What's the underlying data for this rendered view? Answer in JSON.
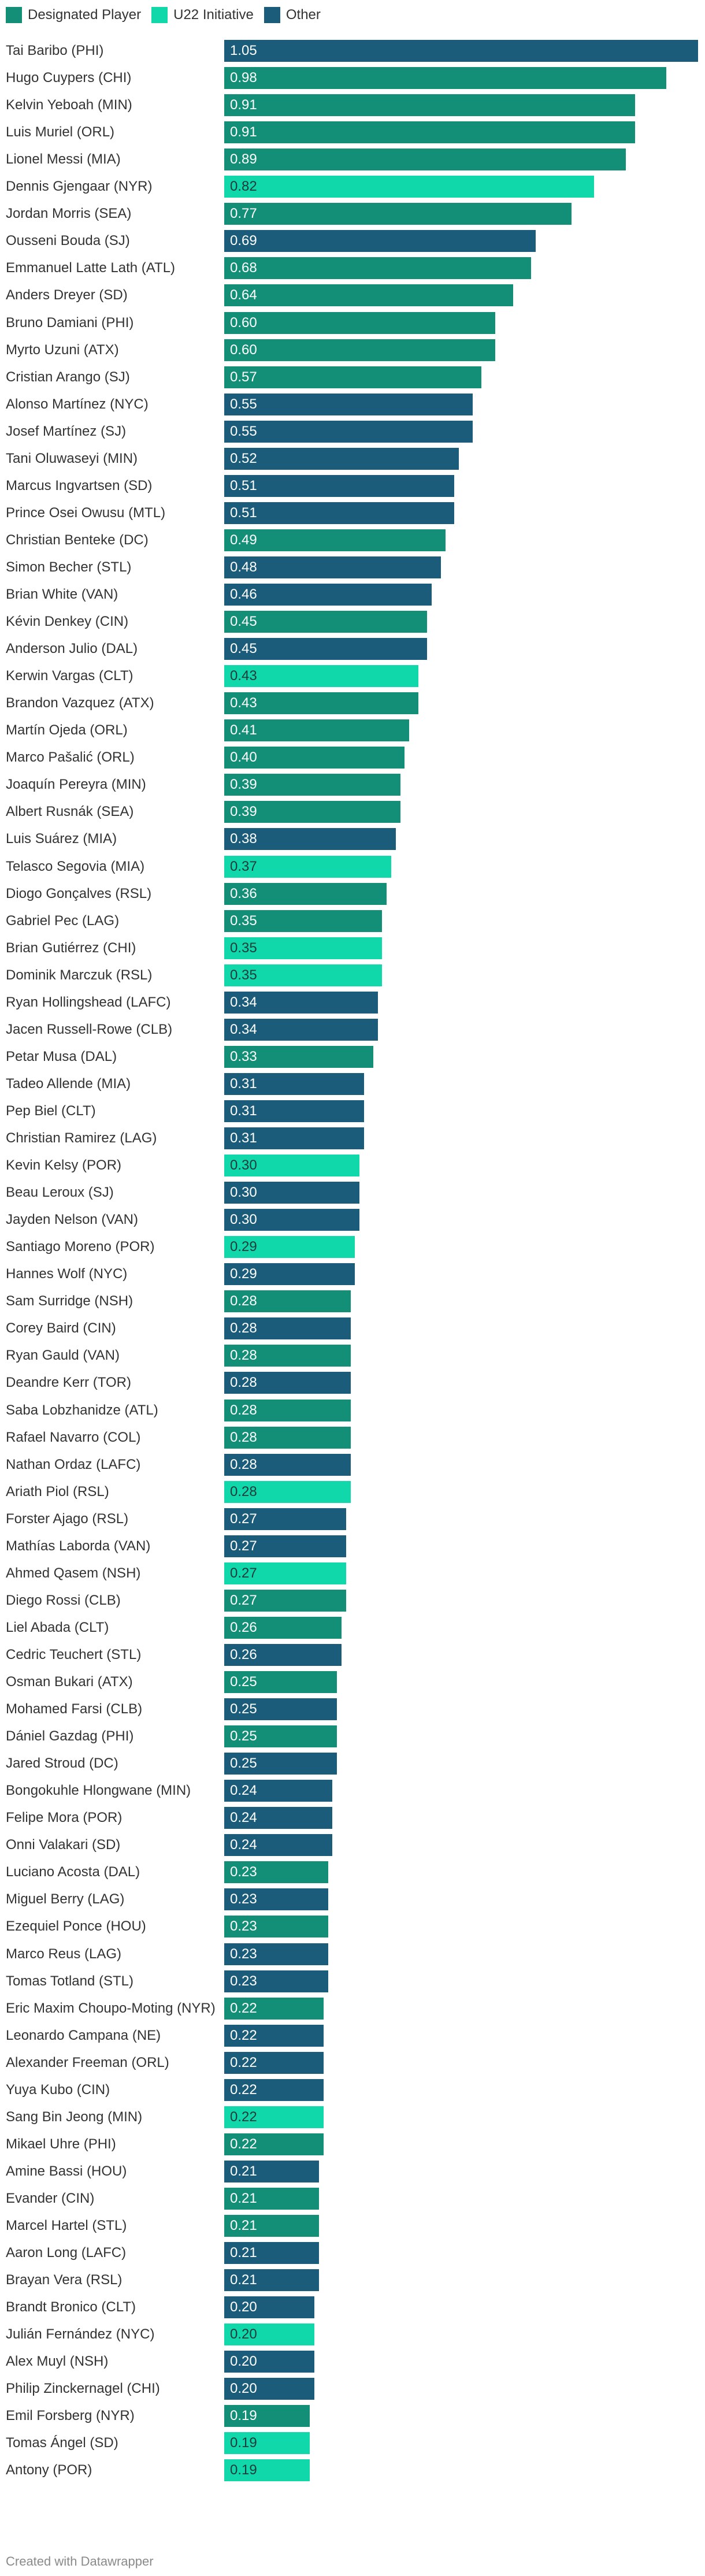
{
  "legend": [
    {
      "key": "dp",
      "label": "Designated Player"
    },
    {
      "key": "u22",
      "label": "U22 Initiative"
    },
    {
      "key": "other",
      "label": "Other"
    }
  ],
  "colors": {
    "dp": "#138f77",
    "u22": "#10d8ab",
    "other": "#1a5c7a"
  },
  "credit": "Created with Datawrapper",
  "chart_data": {
    "type": "bar",
    "orientation": "horizontal",
    "xlim": [
      0,
      1.05
    ],
    "title": "",
    "xlabel": "",
    "ylabel": "",
    "rows": [
      {
        "name": "Tai Baribo (PHI)",
        "value": 1.05,
        "category": "other",
        "label": "1.05"
      },
      {
        "name": "Hugo Cuypers (CHI)",
        "value": 0.98,
        "category": "dp",
        "label": "0.98"
      },
      {
        "name": "Kelvin Yeboah (MIN)",
        "value": 0.91,
        "category": "dp",
        "label": "0.91"
      },
      {
        "name": "Luis Muriel (ORL)",
        "value": 0.91,
        "category": "dp",
        "label": "0.91"
      },
      {
        "name": "Lionel Messi (MIA)",
        "value": 0.89,
        "category": "dp",
        "label": "0.89"
      },
      {
        "name": "Dennis Gjengaar (NYR)",
        "value": 0.82,
        "category": "u22",
        "label": "0.82"
      },
      {
        "name": "Jordan Morris (SEA)",
        "value": 0.77,
        "category": "dp",
        "label": "0.77"
      },
      {
        "name": "Ousseni Bouda (SJ)",
        "value": 0.69,
        "category": "other",
        "label": "0.69"
      },
      {
        "name": "Emmanuel Latte Lath (ATL)",
        "value": 0.68,
        "category": "dp",
        "label": "0.68"
      },
      {
        "name": "Anders Dreyer (SD)",
        "value": 0.64,
        "category": "dp",
        "label": "0.64"
      },
      {
        "name": "Bruno Damiani (PHI)",
        "value": 0.6,
        "category": "dp",
        "label": "0.60"
      },
      {
        "name": "Myrto Uzuni (ATX)",
        "value": 0.6,
        "category": "dp",
        "label": "0.60"
      },
      {
        "name": "Cristian Arango (SJ)",
        "value": 0.57,
        "category": "dp",
        "label": "0.57"
      },
      {
        "name": "Alonso Martínez (NYC)",
        "value": 0.55,
        "category": "other",
        "label": "0.55"
      },
      {
        "name": "Josef Martínez (SJ)",
        "value": 0.55,
        "category": "other",
        "label": "0.55"
      },
      {
        "name": "Tani Oluwaseyi (MIN)",
        "value": 0.52,
        "category": "other",
        "label": "0.52"
      },
      {
        "name": "Marcus Ingvartsen (SD)",
        "value": 0.51,
        "category": "other",
        "label": "0.51"
      },
      {
        "name": "Prince Osei Owusu (MTL)",
        "value": 0.51,
        "category": "other",
        "label": "0.51"
      },
      {
        "name": "Christian Benteke (DC)",
        "value": 0.49,
        "category": "dp",
        "label": "0.49"
      },
      {
        "name": "Simon Becher (STL)",
        "value": 0.48,
        "category": "other",
        "label": "0.48"
      },
      {
        "name": "Brian White (VAN)",
        "value": 0.46,
        "category": "other",
        "label": "0.46"
      },
      {
        "name": "Kévin Denkey (CIN)",
        "value": 0.45,
        "category": "dp",
        "label": "0.45"
      },
      {
        "name": "Anderson Julio (DAL)",
        "value": 0.45,
        "category": "other",
        "label": "0.45"
      },
      {
        "name": "Kerwin Vargas (CLT)",
        "value": 0.43,
        "category": "u22",
        "label": "0.43"
      },
      {
        "name": "Brandon Vazquez (ATX)",
        "value": 0.43,
        "category": "dp",
        "label": "0.43"
      },
      {
        "name": "Martín Ojeda (ORL)",
        "value": 0.41,
        "category": "dp",
        "label": "0.41"
      },
      {
        "name": "Marco Pašalić (ORL)",
        "value": 0.4,
        "category": "dp",
        "label": "0.40"
      },
      {
        "name": "Joaquín Pereyra (MIN)",
        "value": 0.39,
        "category": "dp",
        "label": "0.39"
      },
      {
        "name": "Albert Rusnák (SEA)",
        "value": 0.39,
        "category": "dp",
        "label": "0.39"
      },
      {
        "name": "Luis Suárez (MIA)",
        "value": 0.38,
        "category": "other",
        "label": "0.38"
      },
      {
        "name": "Telasco Segovia (MIA)",
        "value": 0.37,
        "category": "u22",
        "label": "0.37"
      },
      {
        "name": "Diogo Gonçalves (RSL)",
        "value": 0.36,
        "category": "dp",
        "label": "0.36"
      },
      {
        "name": "Gabriel Pec (LAG)",
        "value": 0.35,
        "category": "dp",
        "label": "0.35"
      },
      {
        "name": "Brian Gutiérrez (CHI)",
        "value": 0.35,
        "category": "u22",
        "label": "0.35"
      },
      {
        "name": "Dominik Marczuk (RSL)",
        "value": 0.35,
        "category": "u22",
        "label": "0.35"
      },
      {
        "name": "Ryan Hollingshead (LAFC)",
        "value": 0.34,
        "category": "other",
        "label": "0.34"
      },
      {
        "name": "Jacen Russell-Rowe (CLB)",
        "value": 0.34,
        "category": "other",
        "label": "0.34"
      },
      {
        "name": "Petar Musa (DAL)",
        "value": 0.33,
        "category": "dp",
        "label": "0.33"
      },
      {
        "name": "Tadeo Allende (MIA)",
        "value": 0.31,
        "category": "other",
        "label": "0.31"
      },
      {
        "name": "Pep Biel (CLT)",
        "value": 0.31,
        "category": "other",
        "label": "0.31"
      },
      {
        "name": "Christian Ramirez (LAG)",
        "value": 0.31,
        "category": "other",
        "label": "0.31"
      },
      {
        "name": "Kevin Kelsy (POR)",
        "value": 0.3,
        "category": "u22",
        "label": "0.30"
      },
      {
        "name": "Beau Leroux (SJ)",
        "value": 0.3,
        "category": "other",
        "label": "0.30"
      },
      {
        "name": "Jayden Nelson (VAN)",
        "value": 0.3,
        "category": "other",
        "label": "0.30"
      },
      {
        "name": "Santiago Moreno (POR)",
        "value": 0.29,
        "category": "u22",
        "label": "0.29"
      },
      {
        "name": "Hannes Wolf (NYC)",
        "value": 0.29,
        "category": "other",
        "label": "0.29"
      },
      {
        "name": "Sam Surridge (NSH)",
        "value": 0.28,
        "category": "dp",
        "label": "0.28"
      },
      {
        "name": "Corey Baird (CIN)",
        "value": 0.28,
        "category": "other",
        "label": "0.28"
      },
      {
        "name": "Ryan Gauld (VAN)",
        "value": 0.28,
        "category": "dp",
        "label": "0.28"
      },
      {
        "name": "Deandre Kerr (TOR)",
        "value": 0.28,
        "category": "other",
        "label": "0.28"
      },
      {
        "name": "Saba Lobzhanidze (ATL)",
        "value": 0.28,
        "category": "dp",
        "label": "0.28"
      },
      {
        "name": "Rafael Navarro (COL)",
        "value": 0.28,
        "category": "dp",
        "label": "0.28"
      },
      {
        "name": "Nathan Ordaz (LAFC)",
        "value": 0.28,
        "category": "other",
        "label": "0.28"
      },
      {
        "name": "Ariath Piol (RSL)",
        "value": 0.28,
        "category": "u22",
        "label": "0.28"
      },
      {
        "name": "Forster Ajago (RSL)",
        "value": 0.27,
        "category": "other",
        "label": "0.27"
      },
      {
        "name": "Mathías Laborda (VAN)",
        "value": 0.27,
        "category": "other",
        "label": "0.27"
      },
      {
        "name": "Ahmed Qasem (NSH)",
        "value": 0.27,
        "category": "u22",
        "label": "0.27"
      },
      {
        "name": "Diego Rossi (CLB)",
        "value": 0.27,
        "category": "dp",
        "label": "0.27"
      },
      {
        "name": "Liel Abada (CLT)",
        "value": 0.26,
        "category": "dp",
        "label": "0.26"
      },
      {
        "name": "Cedric Teuchert (STL)",
        "value": 0.26,
        "category": "other",
        "label": "0.26"
      },
      {
        "name": "Osman Bukari (ATX)",
        "value": 0.25,
        "category": "dp",
        "label": "0.25"
      },
      {
        "name": "Mohamed Farsi (CLB)",
        "value": 0.25,
        "category": "other",
        "label": "0.25"
      },
      {
        "name": "Dániel Gazdag (PHI)",
        "value": 0.25,
        "category": "dp",
        "label": "0.25"
      },
      {
        "name": "Jared Stroud (DC)",
        "value": 0.25,
        "category": "other",
        "label": "0.25"
      },
      {
        "name": "Bongokuhle Hlongwane (MIN)",
        "value": 0.24,
        "category": "other",
        "label": "0.24"
      },
      {
        "name": "Felipe Mora (POR)",
        "value": 0.24,
        "category": "other",
        "label": "0.24"
      },
      {
        "name": "Onni Valakari (SD)",
        "value": 0.24,
        "category": "other",
        "label": "0.24"
      },
      {
        "name": "Luciano Acosta (DAL)",
        "value": 0.23,
        "category": "dp",
        "label": "0.23"
      },
      {
        "name": "Miguel Berry (LAG)",
        "value": 0.23,
        "category": "other",
        "label": "0.23"
      },
      {
        "name": "Ezequiel Ponce (HOU)",
        "value": 0.23,
        "category": "dp",
        "label": "0.23"
      },
      {
        "name": "Marco Reus (LAG)",
        "value": 0.23,
        "category": "other",
        "label": "0.23"
      },
      {
        "name": "Tomas Totland (STL)",
        "value": 0.23,
        "category": "other",
        "label": "0.23"
      },
      {
        "name": "Eric Maxim Choupo-Moting (NYR)",
        "value": 0.22,
        "category": "dp",
        "label": "0.22"
      },
      {
        "name": "Leonardo Campana (NE)",
        "value": 0.22,
        "category": "other",
        "label": "0.22"
      },
      {
        "name": "Alexander Freeman (ORL)",
        "value": 0.22,
        "category": "other",
        "label": "0.22"
      },
      {
        "name": "Yuya Kubo (CIN)",
        "value": 0.22,
        "category": "other",
        "label": "0.22"
      },
      {
        "name": "Sang Bin Jeong (MIN)",
        "value": 0.22,
        "category": "u22",
        "label": "0.22"
      },
      {
        "name": "Mikael Uhre (PHI)",
        "value": 0.22,
        "category": "dp",
        "label": "0.22"
      },
      {
        "name": "Amine Bassi (HOU)",
        "value": 0.21,
        "category": "other",
        "label": "0.21"
      },
      {
        "name": "Evander (CIN)",
        "value": 0.21,
        "category": "dp",
        "label": "0.21"
      },
      {
        "name": "Marcel Hartel (STL)",
        "value": 0.21,
        "category": "dp",
        "label": "0.21"
      },
      {
        "name": "Aaron Long (LAFC)",
        "value": 0.21,
        "category": "other",
        "label": "0.21"
      },
      {
        "name": "Brayan Vera (RSL)",
        "value": 0.21,
        "category": "other",
        "label": "0.21"
      },
      {
        "name": "Brandt Bronico (CLT)",
        "value": 0.2,
        "category": "other",
        "label": "0.20"
      },
      {
        "name": "Julián Fernández (NYC)",
        "value": 0.2,
        "category": "u22",
        "label": "0.20"
      },
      {
        "name": "Alex Muyl (NSH)",
        "value": 0.2,
        "category": "other",
        "label": "0.20"
      },
      {
        "name": "Philip Zinckernagel (CHI)",
        "value": 0.2,
        "category": "other",
        "label": "0.20"
      },
      {
        "name": "Emil Forsberg (NYR)",
        "value": 0.19,
        "category": "dp",
        "label": "0.19"
      },
      {
        "name": "Tomas Ángel (SD)",
        "value": 0.19,
        "category": "u22",
        "label": "0.19"
      },
      {
        "name": "Antony (POR)",
        "value": 0.19,
        "category": "u22",
        "label": "0.19"
      }
    ]
  }
}
